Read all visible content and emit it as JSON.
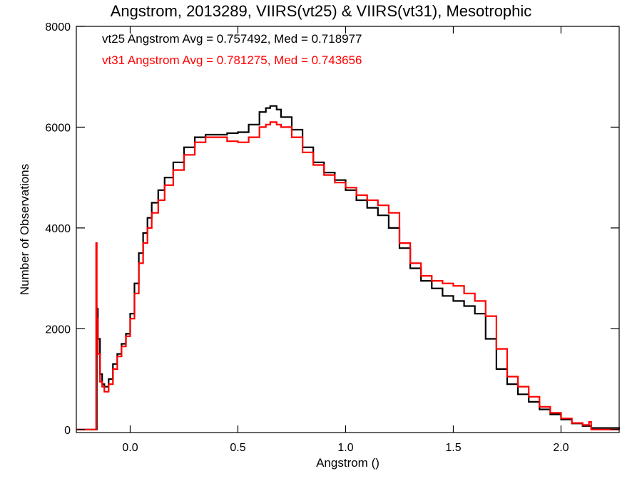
{
  "chart_data": {
    "type": "line",
    "title": "Angstrom, 2013289, VIIRS(vt25) & VIIRS(vt31), Mesotrophic",
    "xlabel": "Angstrom ()",
    "ylabel": "Number of Observations",
    "xlim": [
      -0.25,
      2.27
    ],
    "ylim": [
      -60,
      8000
    ],
    "x_ticks": [
      0.0,
      0.5,
      1.0,
      1.5,
      2.0
    ],
    "x_tick_labels": [
      "0.0",
      "0.5",
      "1.0",
      "1.5",
      "2.0"
    ],
    "y_ticks": [
      0,
      2000,
      4000,
      6000,
      8000
    ],
    "y_tick_labels": [
      "0",
      "2000",
      "4000",
      "6000",
      "8000"
    ],
    "grid": false,
    "series": [
      {
        "name": "vt25",
        "color": "#000000",
        "stat_text": "vt25 Angstrom Avg = 0.757492, Med = 0.718977",
        "x": [
          -0.25,
          -0.16,
          -0.155,
          -0.15,
          -0.14,
          -0.13,
          -0.12,
          -0.1,
          -0.08,
          -0.06,
          -0.04,
          -0.02,
          0.0,
          0.02,
          0.04,
          0.06,
          0.08,
          0.1,
          0.13,
          0.16,
          0.2,
          0.25,
          0.3,
          0.35,
          0.4,
          0.45,
          0.5,
          0.55,
          0.6,
          0.63,
          0.65,
          0.68,
          0.7,
          0.75,
          0.8,
          0.85,
          0.9,
          0.95,
          1.0,
          1.05,
          1.1,
          1.15,
          1.2,
          1.25,
          1.3,
          1.35,
          1.4,
          1.45,
          1.5,
          1.55,
          1.6,
          1.65,
          1.7,
          1.75,
          1.8,
          1.85,
          1.9,
          1.95,
          2.0,
          2.05,
          2.1,
          2.14,
          2.27
        ],
        "y": [
          0,
          0,
          2400,
          1800,
          1100,
          900,
          850,
          1000,
          1300,
          1500,
          1700,
          1900,
          2300,
          2900,
          3500,
          3900,
          4200,
          4500,
          4750,
          5000,
          5300,
          5600,
          5800,
          5850,
          5850,
          5880,
          5900,
          6050,
          6300,
          6380,
          6420,
          6350,
          6200,
          5950,
          5600,
          5300,
          5100,
          4950,
          4750,
          4550,
          4400,
          4250,
          4000,
          3600,
          3200,
          2950,
          2800,
          2650,
          2550,
          2450,
          2300,
          1800,
          1200,
          900,
          700,
          550,
          400,
          300,
          200,
          120,
          70,
          30,
          0
        ]
      },
      {
        "name": "vt31",
        "color": "#ff0000",
        "stat_text": "vt31 Angstrom Avg = 0.781275, Med = 0.743656",
        "x": [
          -0.25,
          -0.16,
          -0.158,
          -0.155,
          -0.15,
          -0.14,
          -0.13,
          -0.12,
          -0.1,
          -0.08,
          -0.06,
          -0.04,
          -0.02,
          0.0,
          0.02,
          0.04,
          0.06,
          0.08,
          0.1,
          0.13,
          0.16,
          0.2,
          0.25,
          0.3,
          0.35,
          0.4,
          0.45,
          0.5,
          0.55,
          0.6,
          0.63,
          0.65,
          0.68,
          0.7,
          0.75,
          0.8,
          0.85,
          0.9,
          0.95,
          1.0,
          1.05,
          1.1,
          1.15,
          1.2,
          1.25,
          1.3,
          1.35,
          1.4,
          1.45,
          1.5,
          1.55,
          1.6,
          1.65,
          1.7,
          1.75,
          1.8,
          1.85,
          1.9,
          1.95,
          2.0,
          2.05,
          2.1,
          2.13,
          2.14,
          2.27
        ],
        "y": [
          0,
          0,
          3700,
          2200,
          1500,
          950,
          850,
          750,
          900,
          1200,
          1450,
          1650,
          1850,
          2200,
          2700,
          3300,
          3700,
          4000,
          4300,
          4550,
          4850,
          5150,
          5450,
          5700,
          5800,
          5800,
          5720,
          5700,
          5800,
          6000,
          6050,
          6100,
          6050,
          6000,
          5800,
          5500,
          5250,
          5050,
          4900,
          4800,
          4650,
          4550,
          4450,
          4300,
          3700,
          3300,
          3050,
          2950,
          2900,
          2850,
          2700,
          2550,
          2250,
          1600,
          1050,
          850,
          650,
          450,
          330,
          220,
          130,
          90,
          150,
          0,
          0
        ]
      }
    ]
  }
}
